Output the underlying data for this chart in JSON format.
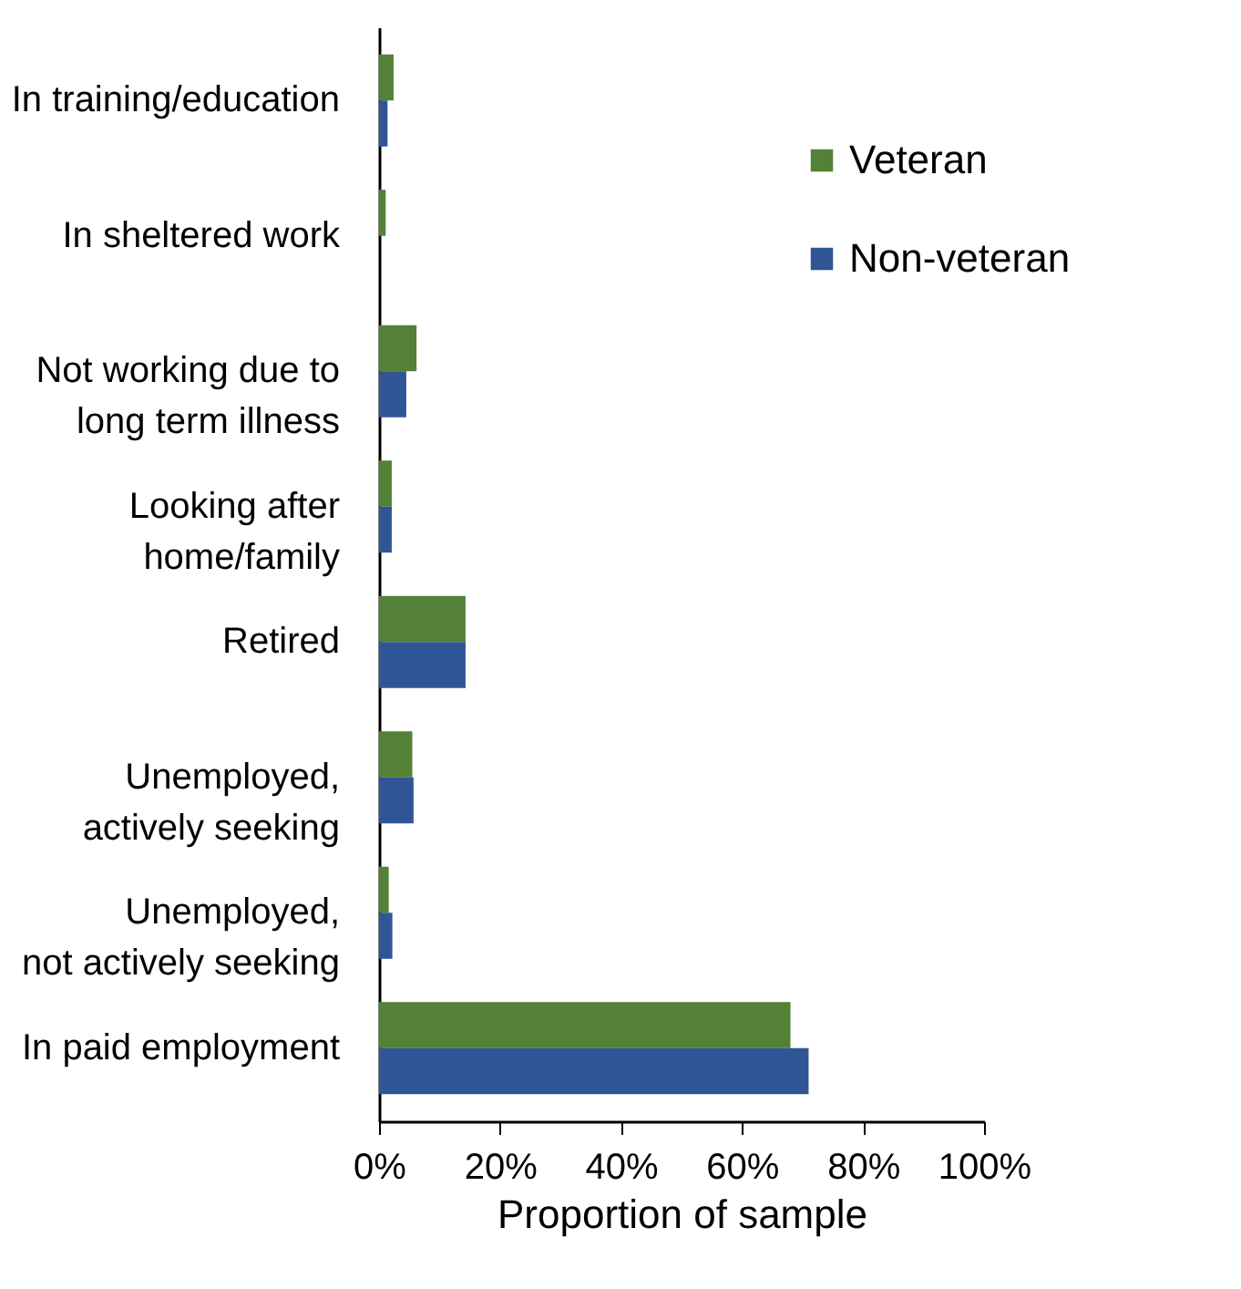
{
  "chart_data": {
    "type": "bar",
    "orientation": "horizontal",
    "xlabel": "Proportion of sample",
    "categories": [
      "In training/education",
      "In sheltered work",
      "Not working due to\nlong term illness",
      "Looking after\nhome/family",
      "Retired",
      "Unemployed,\nactively seeking",
      "Unemployed,\nnot actively seeking",
      "In paid employment"
    ],
    "series": [
      {
        "name": "Veteran",
        "color": "#538135",
        "values": [
          2.4,
          1.1,
          6.2,
          2.1,
          14.3,
          5.5,
          1.6,
          68
        ]
      },
      {
        "name": "Non-veteran",
        "color": "#2f5597",
        "values": [
          1.4,
          0,
          4.5,
          2.1,
          14.3,
          5.7,
          2.2,
          71
        ]
      }
    ],
    "xlim": [
      0,
      100
    ],
    "xticks": [
      {
        "value": 0,
        "label": "0%"
      },
      {
        "value": 20,
        "label": "20%"
      },
      {
        "value": 40,
        "label": "40%"
      },
      {
        "value": 60,
        "label": "60%"
      },
      {
        "value": 80,
        "label": "80%"
      },
      {
        "value": 100,
        "label": "100%"
      }
    ],
    "grid": false,
    "legend": "top right"
  }
}
